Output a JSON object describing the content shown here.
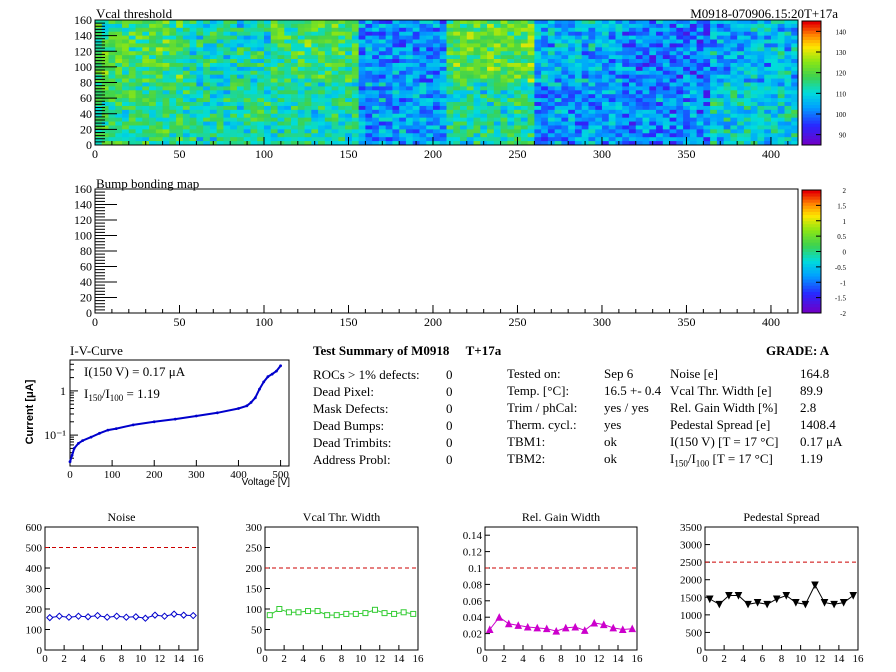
{
  "header": {
    "title_left": "Vcal threshold",
    "title_right": "M0918-070906.15:20T+17a"
  },
  "bump_title": "Bump bonding map",
  "heatmap_ticks": {
    "x": [
      "0",
      "50",
      "100",
      "150",
      "200",
      "250",
      "300",
      "350",
      "400"
    ],
    "y": [
      "0",
      "20",
      "40",
      "60",
      "80",
      "100",
      "120",
      "140",
      "160"
    ],
    "vcal_scale": [
      "90",
      "100",
      "110",
      "120",
      "130",
      "140"
    ],
    "bump_scale": [
      "-2",
      "-1.5",
      "-1",
      "-0.5",
      "0",
      "0.5",
      "1",
      "1.5",
      "2"
    ]
  },
  "colors": {
    "noise": "#0000cc",
    "vcal": "#33cc33",
    "gain": "#cc00cc",
    "pedestal": "#000000",
    "limit": "#cc0000",
    "iv": "#0000cc"
  },
  "chart_data": [
    {
      "type": "heatmap",
      "title": "Vcal threshold",
      "xlim": [
        0,
        416
      ],
      "ylim": [
        0,
        160
      ],
      "zlim": [
        85,
        145
      ],
      "roc_grid": {
        "cols": 8,
        "rows": 2
      },
      "roc_mean_top": [
        118,
        112,
        117,
        102,
        121,
        105,
        100,
        106
      ],
      "roc_mean_bottom": [
        115,
        113,
        113,
        103,
        113,
        103,
        101,
        110
      ]
    },
    {
      "type": "heatmap",
      "title": "Bump bonding map",
      "xlim": [
        0,
        416
      ],
      "ylim": [
        0,
        160
      ],
      "zlim": [
        -2,
        2
      ]
    },
    {
      "type": "line",
      "title": "I-V-Curve",
      "xlabel": "Voltage [V]",
      "ylabel": "Current [μA]",
      "yscale": "log",
      "xlim": [
        0,
        520
      ],
      "ylim": [
        0.02,
        5
      ],
      "x_ticks": [
        "0",
        "100",
        "200",
        "300",
        "400",
        "500"
      ],
      "y_ticks": [
        "10⁻¹",
        "1"
      ],
      "annotation_1": "I(150 V) = 0.17 μA",
      "annotation_2_a": "I",
      "annotation_2_sub1": "150",
      "annotation_2_b": "/I",
      "annotation_2_sub2": "100",
      "annotation_2_c": " =  1.19",
      "x": [
        0,
        5,
        10,
        20,
        30,
        50,
        70,
        90,
        110,
        150,
        200,
        250,
        300,
        350,
        400,
        420,
        430,
        440,
        450,
        460,
        470,
        480,
        490,
        500
      ],
      "y": [
        0.025,
        0.035,
        0.05,
        0.065,
        0.075,
        0.09,
        0.11,
        0.13,
        0.14,
        0.17,
        0.2,
        0.23,
        0.27,
        0.32,
        0.4,
        0.46,
        0.55,
        0.7,
        1.1,
        1.6,
        2.1,
        2.4,
        2.8,
        3.7
      ]
    },
    {
      "type": "line",
      "title": "Noise",
      "ylim": [
        0,
        600
      ],
      "y_ticks": [
        "0",
        "100",
        "200",
        "300",
        "400",
        "500",
        "600"
      ],
      "x_ticks": [
        "0",
        "2",
        "4",
        "6",
        "8",
        "10",
        "12",
        "14",
        "16"
      ],
      "limit": 500,
      "x": [
        0.5,
        1.5,
        2.5,
        3.5,
        4.5,
        5.5,
        6.5,
        7.5,
        8.5,
        9.5,
        10.5,
        11.5,
        12.5,
        13.5,
        14.5,
        15.5
      ],
      "y": [
        158,
        165,
        160,
        165,
        162,
        168,
        160,
        165,
        160,
        162,
        155,
        170,
        165,
        175,
        170,
        168
      ]
    },
    {
      "type": "line",
      "title": "Vcal Thr. Width",
      "ylim": [
        0,
        300
      ],
      "y_ticks": [
        "0",
        "50",
        "100",
        "150",
        "200",
        "250",
        "300"
      ],
      "x_ticks": [
        "0",
        "2",
        "4",
        "6",
        "8",
        "10",
        "12",
        "14",
        "16"
      ],
      "limit": 200,
      "x": [
        0.5,
        1.5,
        2.5,
        3.5,
        4.5,
        5.5,
        6.5,
        7.5,
        8.5,
        9.5,
        10.5,
        11.5,
        12.5,
        13.5,
        14.5,
        15.5
      ],
      "y": [
        85,
        100,
        92,
        92,
        95,
        95,
        85,
        85,
        88,
        88,
        90,
        98,
        90,
        88,
        92,
        88
      ]
    },
    {
      "type": "line",
      "title": "Rel. Gain Width",
      "ylim": [
        0,
        0.15
      ],
      "y_ticks": [
        "0",
        "0.02",
        "0.04",
        "0.06",
        "0.08",
        "0.1",
        "0.12",
        "0.14"
      ],
      "x_ticks": [
        "0",
        "2",
        "4",
        "6",
        "8",
        "10",
        "12",
        "14",
        "16"
      ],
      "limit": 0.1,
      "x": [
        0.5,
        1.5,
        2.5,
        3.5,
        4.5,
        5.5,
        6.5,
        7.5,
        8.5,
        9.5,
        10.5,
        11.5,
        12.5,
        13.5,
        14.5,
        15.5
      ],
      "y": [
        0.025,
        0.04,
        0.032,
        0.03,
        0.028,
        0.027,
        0.026,
        0.023,
        0.027,
        0.028,
        0.024,
        0.033,
        0.031,
        0.027,
        0.025,
        0.026
      ]
    },
    {
      "type": "line",
      "title": "Pedestal Spread",
      "ylim": [
        0,
        3500
      ],
      "y_ticks": [
        "0",
        "500",
        "1000",
        "1500",
        "2000",
        "2500",
        "3000",
        "3500"
      ],
      "x_ticks": [
        "0",
        "2",
        "4",
        "6",
        "8",
        "10",
        "12",
        "14",
        "16"
      ],
      "limit": 2500,
      "x": [
        0.5,
        1.5,
        2.5,
        3.5,
        4.5,
        5.5,
        6.5,
        7.5,
        8.5,
        9.5,
        10.5,
        11.5,
        12.5,
        13.5,
        14.5,
        15.5
      ],
      "y": [
        1450,
        1300,
        1550,
        1550,
        1300,
        1350,
        1300,
        1450,
        1550,
        1350,
        1300,
        1850,
        1350,
        1300,
        1350,
        1550
      ]
    }
  ],
  "summary": {
    "title": "Test Summary of M0918",
    "temp_tag": "T+17a",
    "grade": "GRADE:  A",
    "defects": [
      {
        "label": "ROCs > 1% defects:",
        "value": "0"
      },
      {
        "label": "Dead Pixel:",
        "value": "0"
      },
      {
        "label": "Mask Defects:",
        "value": "0"
      },
      {
        "label": "Dead Bumps:",
        "value": "0"
      },
      {
        "label": "Dead Trimbits:",
        "value": "0"
      },
      {
        "label": "Address Probl:",
        "value": "0"
      }
    ],
    "info": [
      {
        "label": "Tested on:",
        "value": "Sep 6"
      },
      {
        "label": "Temp. [°C]:",
        "value": "16.5 +- 0.4"
      },
      {
        "label": "Trim / phCal:",
        "value": "yes / yes"
      },
      {
        "label": "Therm. cycl.:",
        "value": "yes"
      },
      {
        "label": "TBM1:",
        "value": "ok"
      },
      {
        "label": "TBM2:",
        "value": "ok"
      }
    ],
    "params": [
      {
        "label": "Noise [e]",
        "value": "164.8"
      },
      {
        "label": "Vcal Thr. Width [e]",
        "value": "89.9"
      },
      {
        "label": "Rel. Gain Width [%]",
        "value": "2.8"
      },
      {
        "label": "Pedestal Spread [e]",
        "value": "1408.4"
      },
      {
        "label": "I(150 V) [T = 17 °C]",
        "value": "0.17 μA"
      }
    ],
    "ratio_a": "I",
    "ratio_sub1": "150",
    "ratio_b": "/I",
    "ratio_sub2": "100",
    "ratio_c": "  [T = 17 °C]",
    "ratio_value": "1.19"
  }
}
